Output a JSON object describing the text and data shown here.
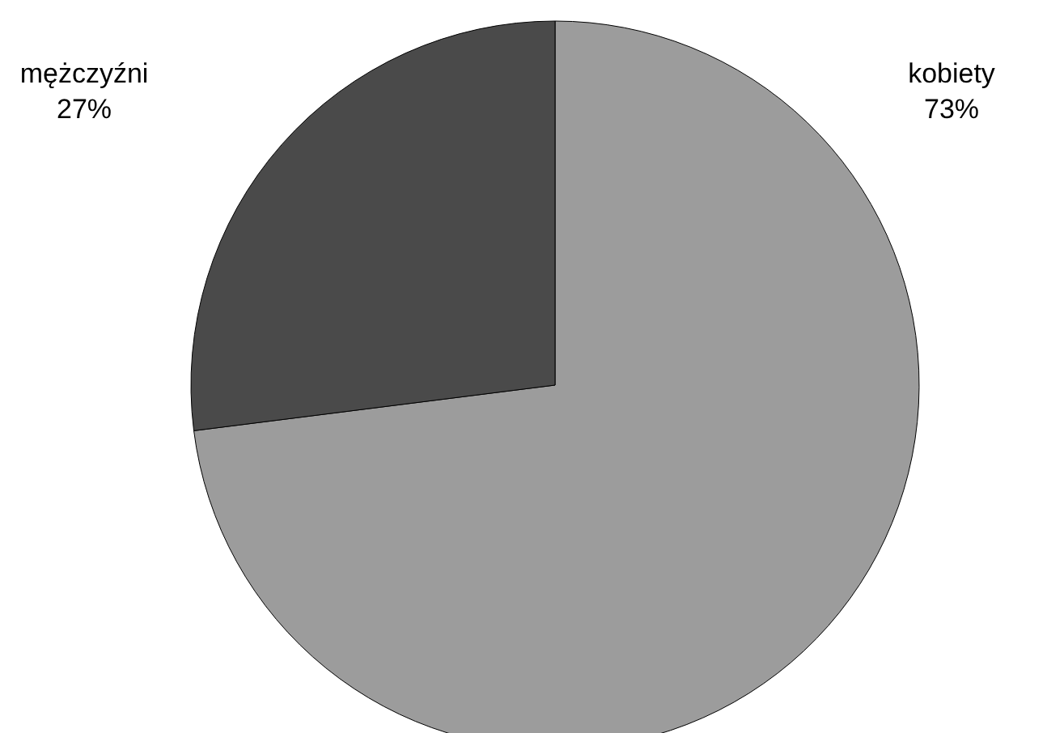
{
  "chart_data": {
    "type": "pie",
    "categories": [
      "kobiety",
      "mężczyźni"
    ],
    "values": [
      73,
      27
    ],
    "value_labels": [
      "73%",
      "27%"
    ],
    "colors": [
      "#9c9c9c",
      "#4a4a4a"
    ]
  }
}
